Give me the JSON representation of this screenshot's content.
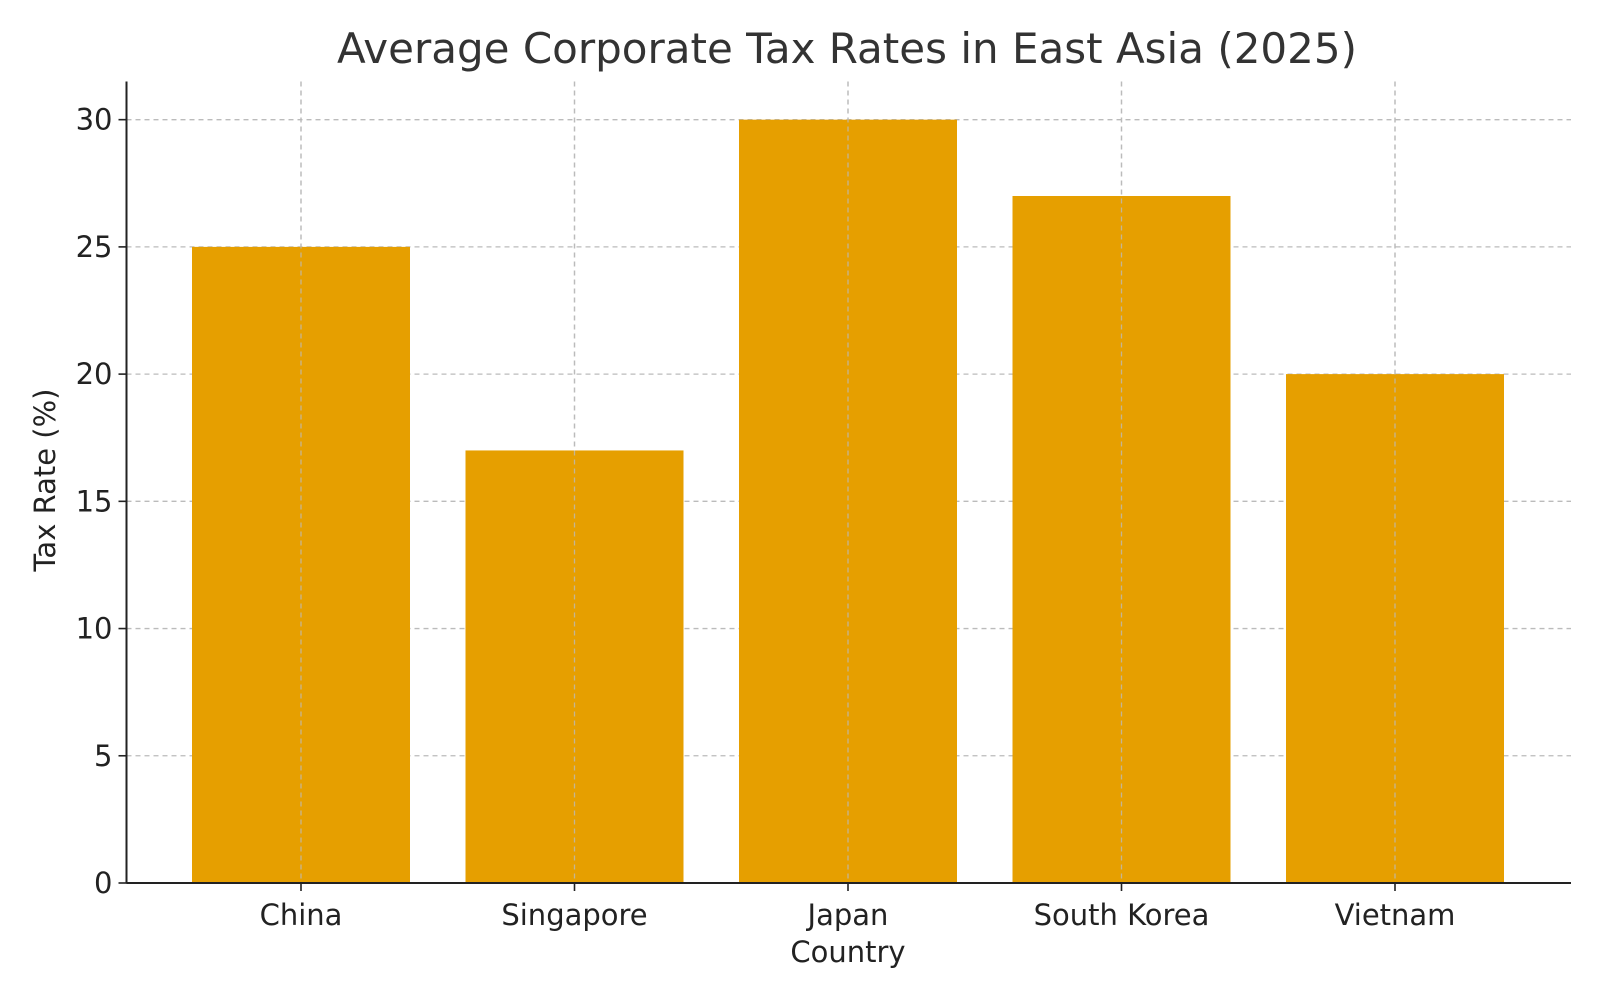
{
  "chart_data": {
    "type": "bar",
    "title": "Average Corporate Tax Rates in East Asia (2025)",
    "xlabel": "Country",
    "ylabel": "Tax Rate (%)",
    "categories": [
      "China",
      "Singapore",
      "Japan",
      "South Korea",
      "Vietnam"
    ],
    "values": [
      25,
      17,
      30,
      27,
      20
    ],
    "ylim": [
      0,
      31.5
    ],
    "yticks": [
      0,
      5,
      10,
      15,
      20,
      25,
      30
    ],
    "grid": true,
    "bar_color": "#E69F00"
  }
}
